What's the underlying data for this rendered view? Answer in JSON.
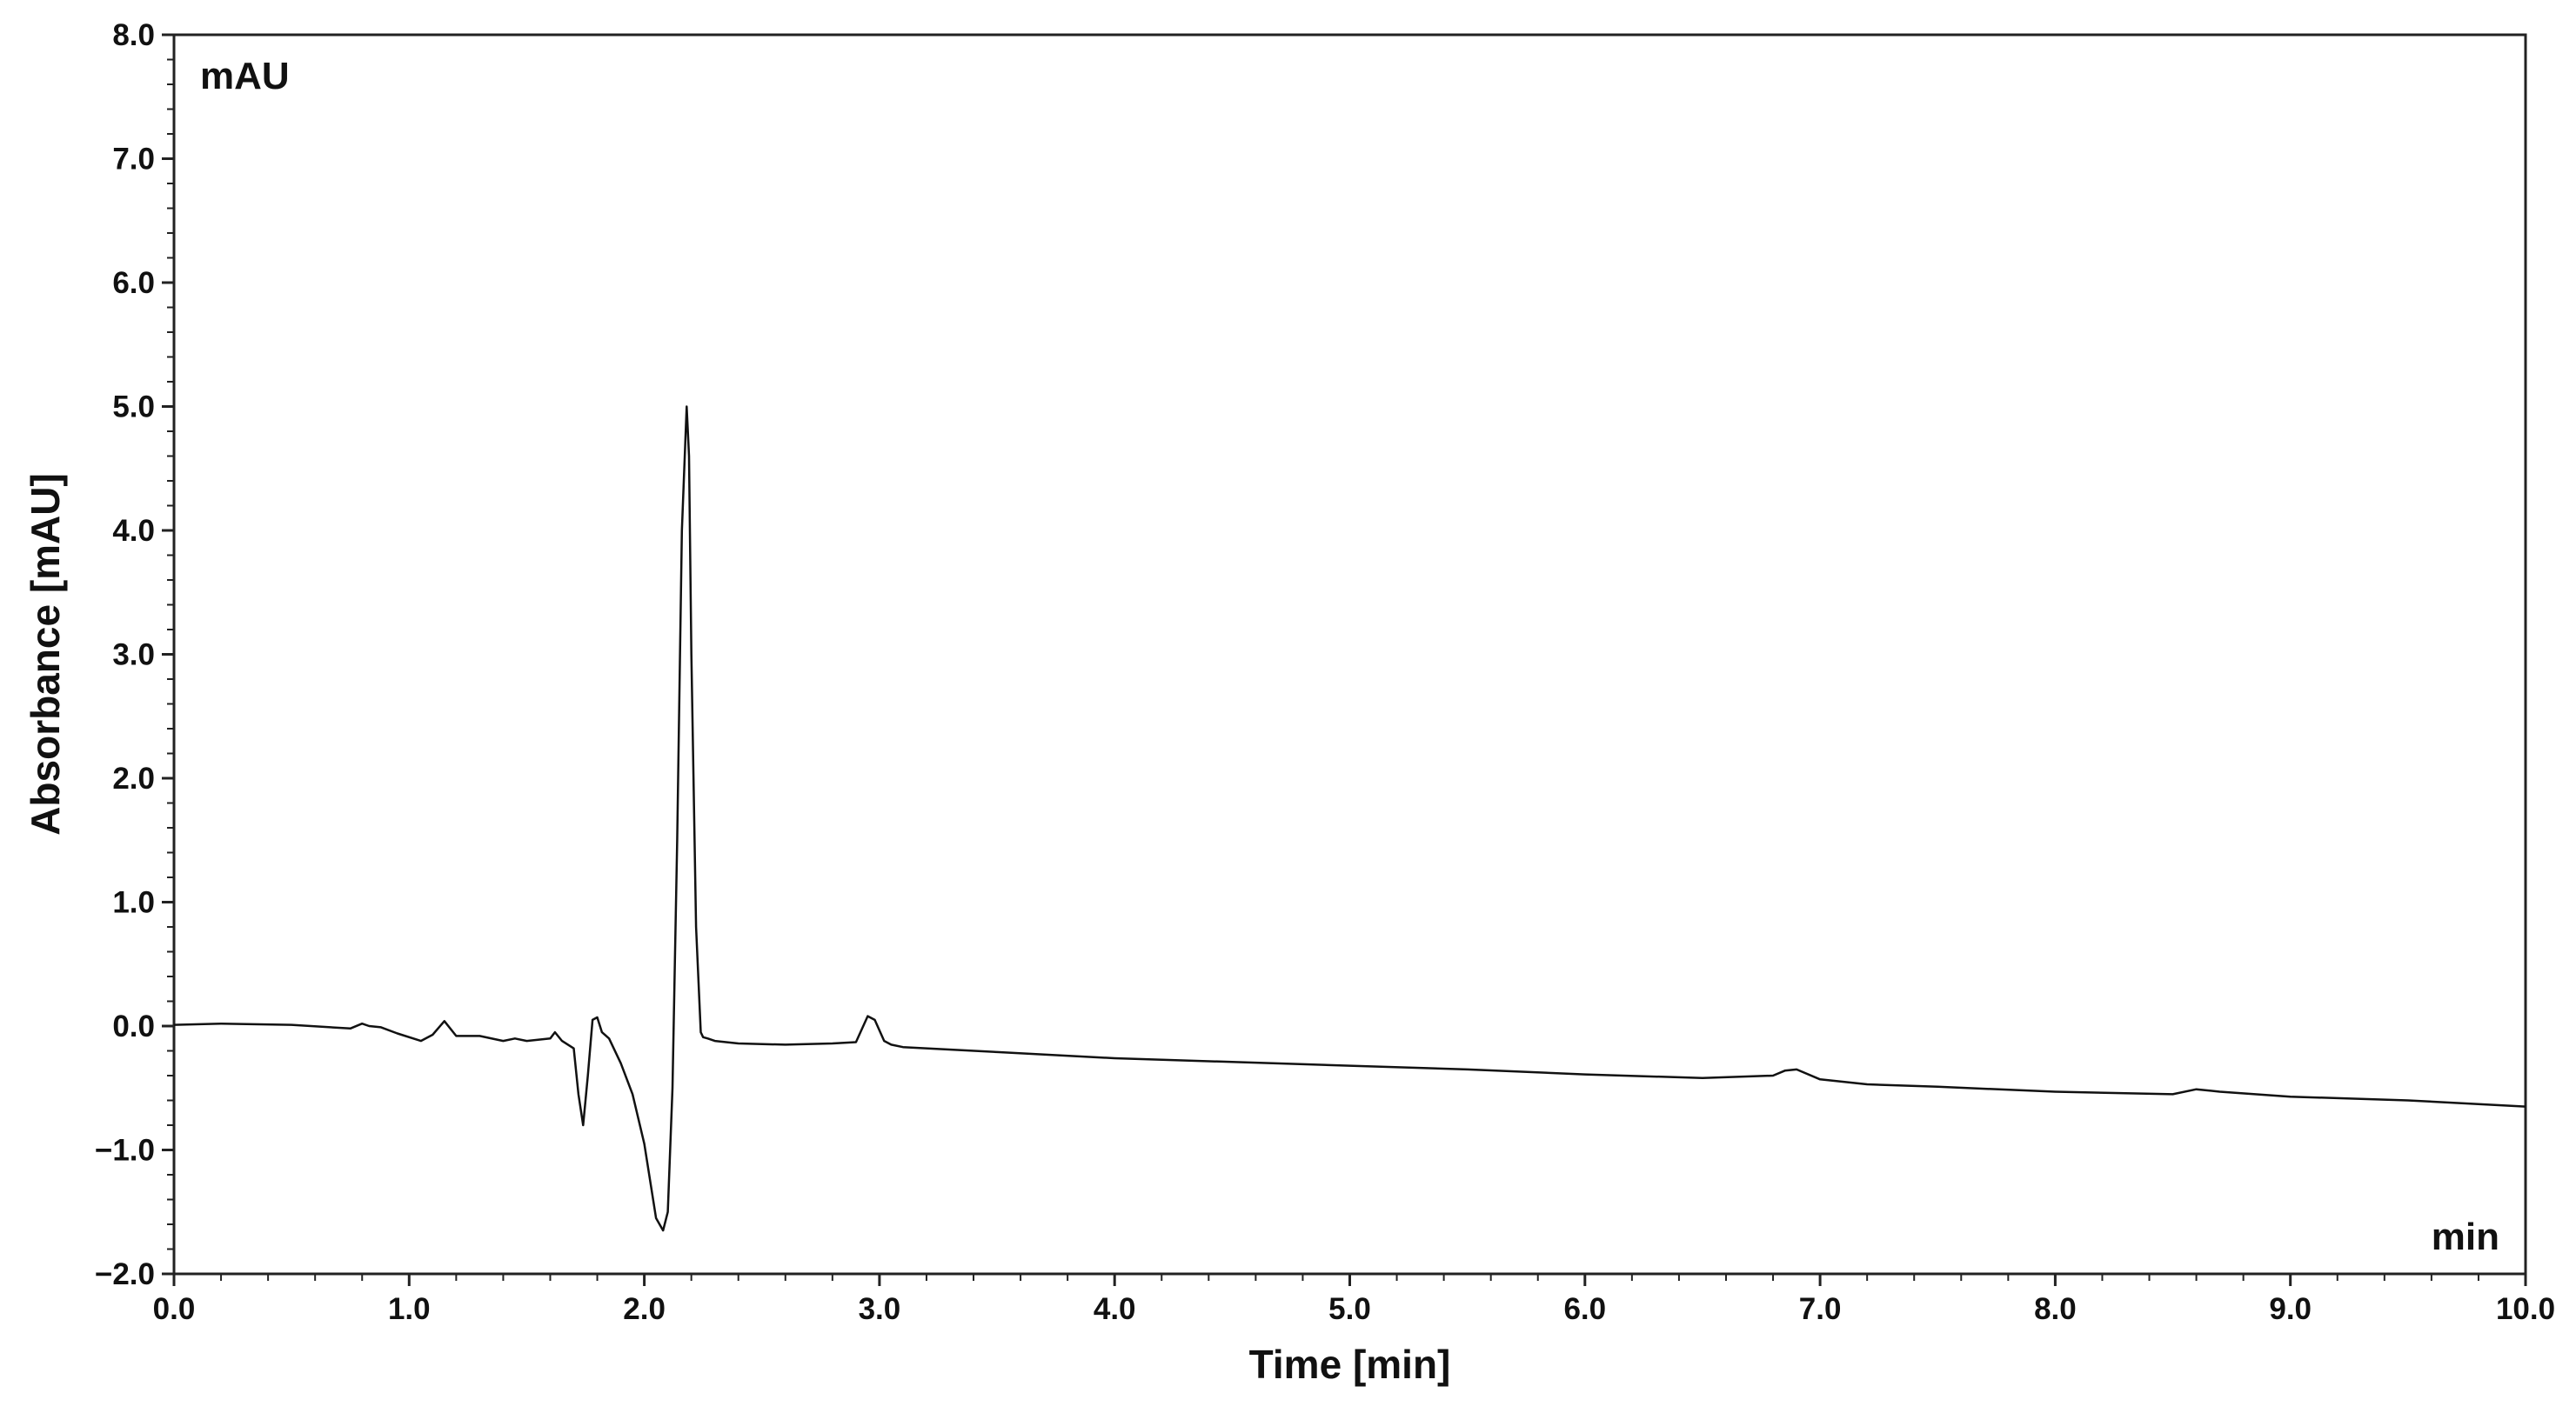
{
  "chart_data": {
    "type": "line",
    "xlabel": "Time [min]",
    "ylabel": "Absorbance [mAU]",
    "y_unit_label": "mAU",
    "x_unit_label": "min",
    "xlim": [
      0,
      10
    ],
    "ylim": [
      -2,
      8
    ],
    "x_ticks": [
      "0.0",
      "1.0",
      "2.0",
      "3.0",
      "4.0",
      "5.0",
      "6.0",
      "7.0",
      "8.0",
      "9.0",
      "10.0"
    ],
    "y_ticks": [
      "−2.0",
      "−1.0",
      "0.0",
      "1.0",
      "2.0",
      "3.0",
      "4.0",
      "5.0",
      "6.0",
      "7.0",
      "8.0"
    ],
    "grid": false,
    "line_color": "#111111",
    "series": [
      {
        "x": [
          0.0,
          0.2,
          0.5,
          0.75,
          0.8,
          0.83,
          0.88,
          0.95,
          1.05,
          1.1,
          1.15,
          1.2,
          1.3,
          1.4,
          1.45,
          1.5,
          1.6,
          1.62,
          1.65,
          1.7,
          1.72,
          1.74,
          1.76,
          1.78,
          1.8,
          1.82,
          1.85,
          1.9,
          1.95,
          2.0,
          2.05,
          2.08,
          2.1,
          2.12,
          2.14,
          2.16,
          2.18,
          2.19,
          2.2,
          2.22,
          2.24,
          2.25,
          2.27,
          2.3,
          2.4,
          2.6,
          2.8,
          2.9,
          2.95,
          2.98,
          3.02,
          3.05,
          3.1,
          3.5,
          4.0,
          4.5,
          5.0,
          5.5,
          6.0,
          6.5,
          6.8,
          6.85,
          6.9,
          7.0,
          7.2,
          7.5,
          8.0,
          8.5,
          8.6,
          8.7,
          9.0,
          9.5,
          10.0
        ],
        "y": [
          0.01,
          0.02,
          0.01,
          -0.02,
          0.02,
          0.0,
          -0.01,
          -0.06,
          -0.12,
          -0.07,
          0.04,
          -0.08,
          -0.08,
          -0.12,
          -0.1,
          -0.12,
          -0.1,
          -0.05,
          -0.12,
          -0.18,
          -0.55,
          -0.8,
          -0.4,
          0.05,
          0.07,
          -0.05,
          -0.1,
          -0.3,
          -0.55,
          -0.95,
          -1.55,
          -1.65,
          -1.5,
          -0.5,
          1.5,
          4.0,
          5.0,
          4.6,
          3.0,
          0.8,
          -0.05,
          -0.09,
          -0.1,
          -0.12,
          -0.14,
          -0.15,
          -0.14,
          -0.13,
          0.08,
          0.05,
          -0.12,
          -0.15,
          -0.17,
          -0.21,
          -0.26,
          -0.29,
          -0.32,
          -0.35,
          -0.39,
          -0.42,
          -0.4,
          -0.36,
          -0.35,
          -0.43,
          -0.47,
          -0.49,
          -0.53,
          -0.55,
          -0.51,
          -0.53,
          -0.57,
          -0.6,
          -0.65
        ]
      }
    ]
  }
}
